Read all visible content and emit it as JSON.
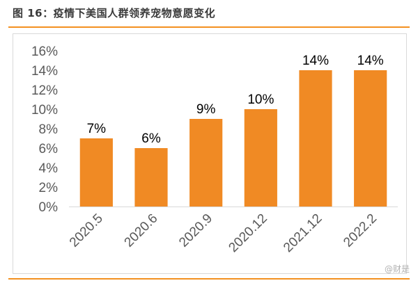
{
  "header": {
    "figure_title": "图 16：疫情下美国人群领养宠物意愿变化"
  },
  "watermark": "@财是",
  "colors": {
    "bar": "#f08a24",
    "rule": "#f39020",
    "axis_text": "#595959"
  },
  "chart_data": {
    "type": "bar",
    "categories": [
      "2020.5",
      "2020.6",
      "2020.9",
      "2020.12",
      "2021.12",
      "2022.2"
    ],
    "values": [
      7,
      6,
      9,
      10,
      14,
      14
    ],
    "data_labels": [
      "7%",
      "6%",
      "9%",
      "10%",
      "14%",
      "14%"
    ],
    "y_ticks": [
      "0%",
      "2%",
      "4%",
      "6%",
      "8%",
      "10%",
      "12%",
      "14%",
      "16%"
    ],
    "ylim": [
      0,
      16
    ],
    "y_unit": "%",
    "title": "",
    "xlabel": "",
    "ylabel": "",
    "grid": false,
    "legend": "none",
    "x_label_rotation_deg": -45
  }
}
